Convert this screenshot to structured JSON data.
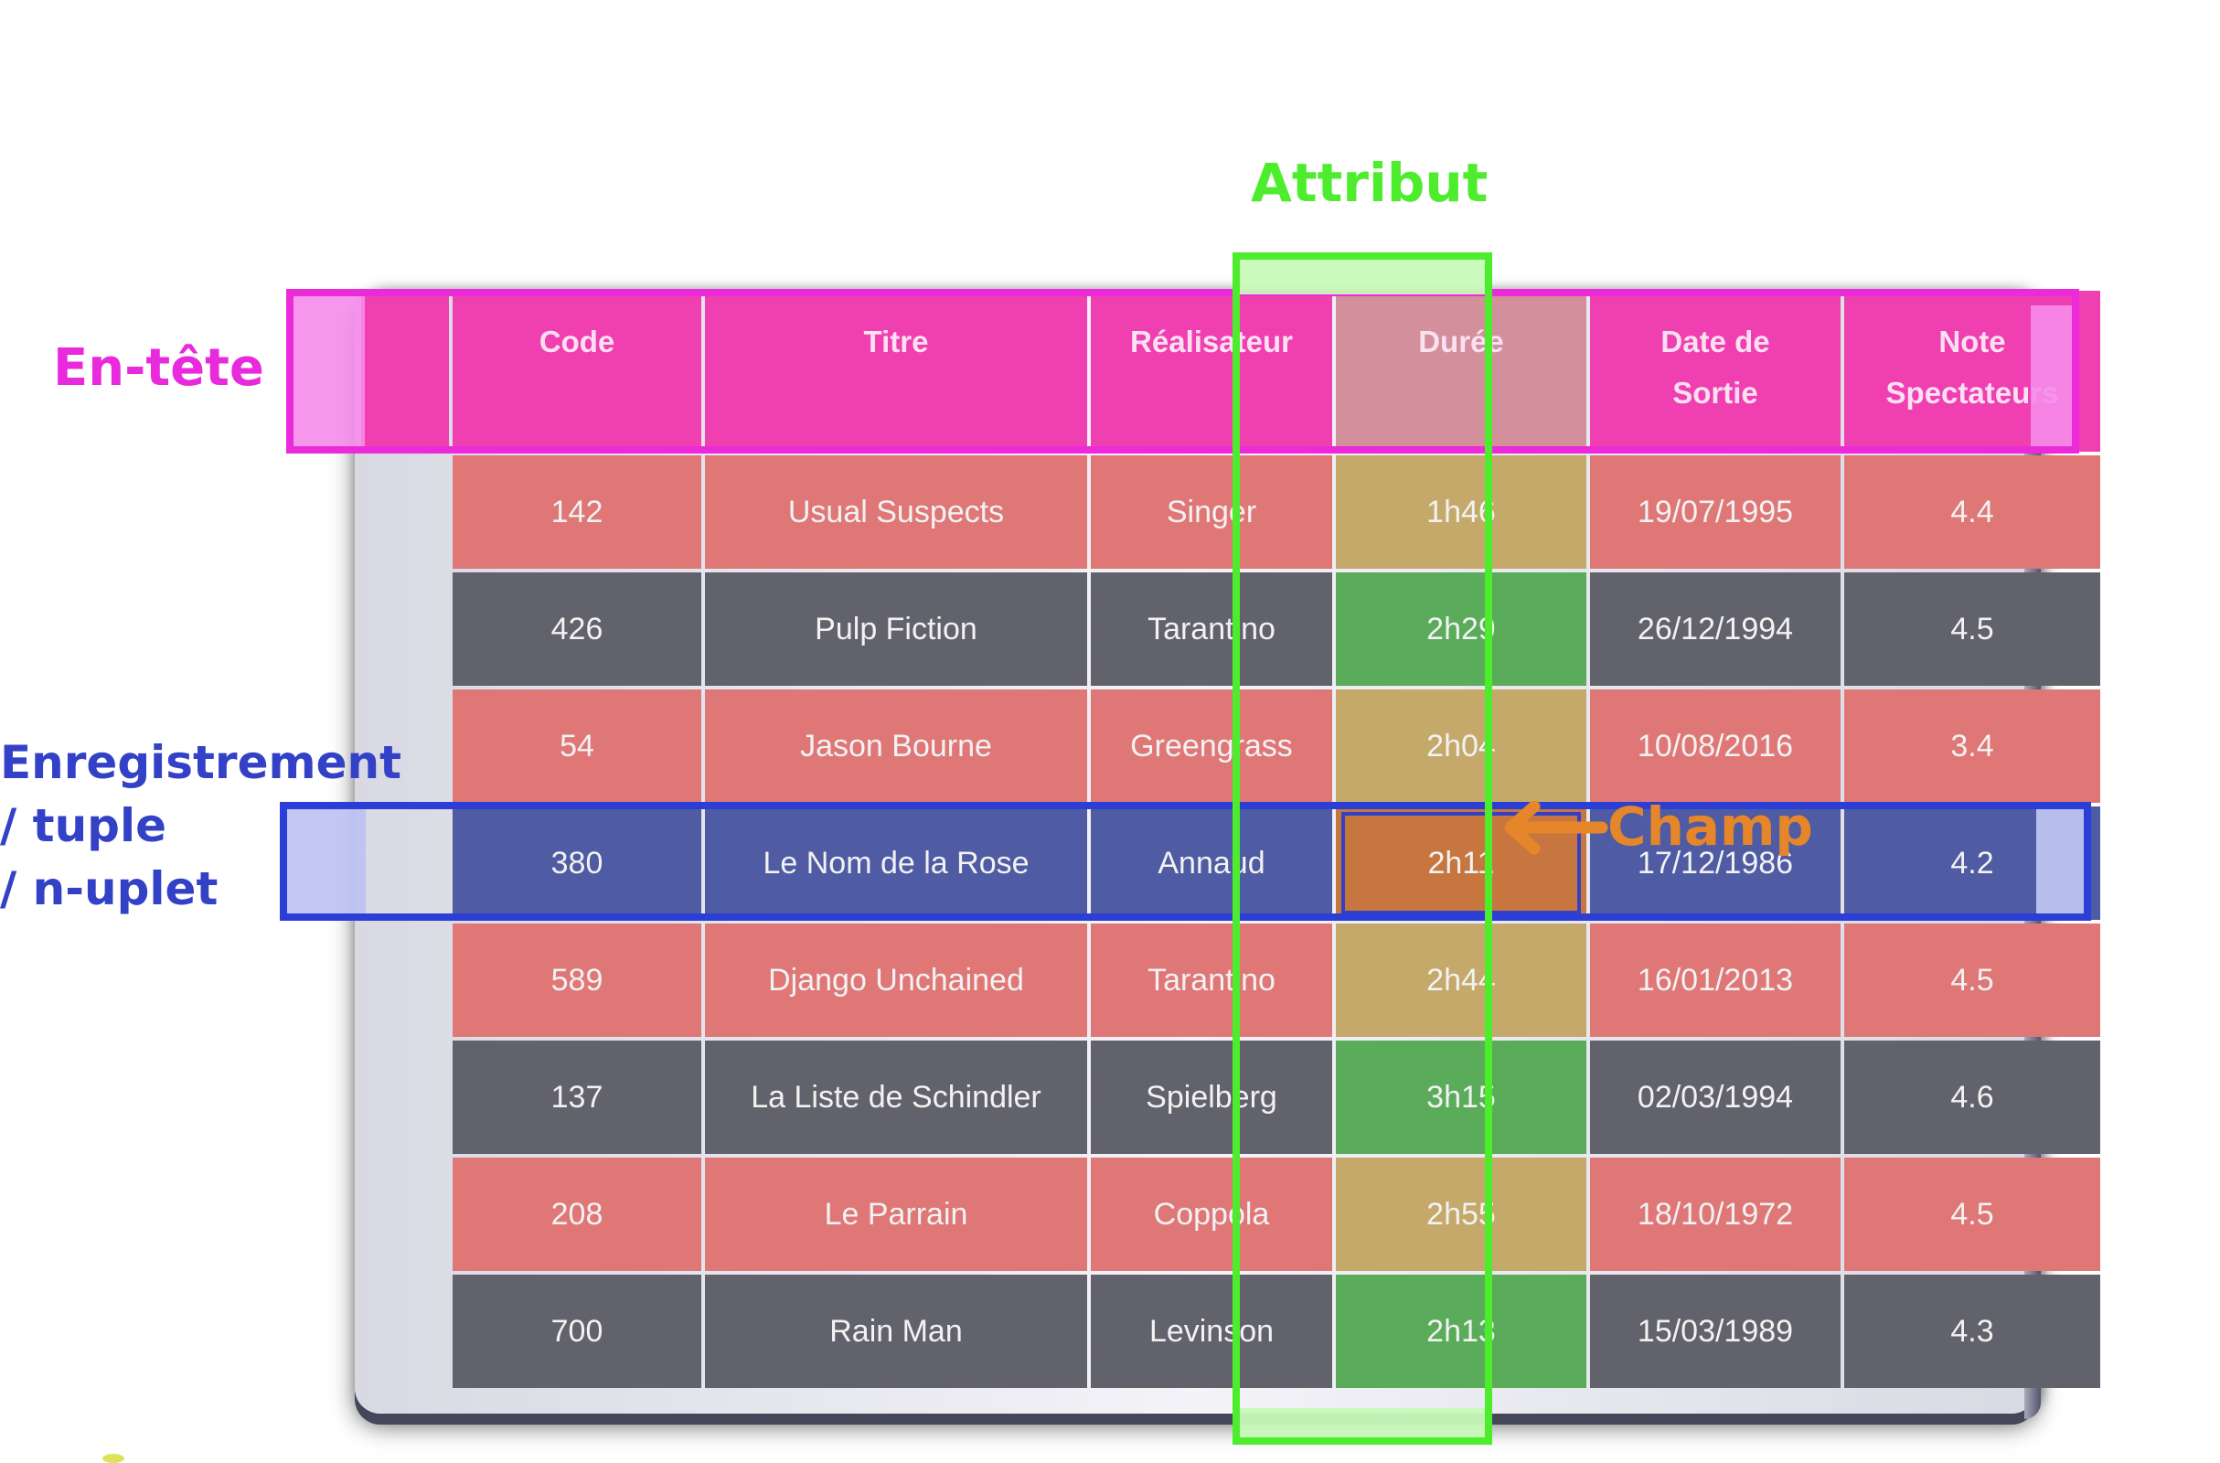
{
  "labels": {
    "attribut": "Attribut",
    "en_tete": "En-tête",
    "enregistrement": [
      "Enregistrement",
      "/ tuple",
      "/ n-uplet"
    ],
    "champ": "Champ"
  },
  "colors": {
    "header_highlight": "#ec2ad9",
    "attribute_highlight": "#4ded2d",
    "record_highlight": "#2b3fd6",
    "field_highlight": "#e5862a"
  },
  "table": {
    "headers": [
      [
        "Code"
      ],
      [
        "Titre"
      ],
      [
        "Réalisateur"
      ],
      [
        "Durée"
      ],
      [
        "Date de",
        "Sortie"
      ],
      [
        "Note",
        "Spectateurs"
      ]
    ],
    "rows": [
      [
        "142",
        "Usual Suspects",
        "Singer",
        "1h46",
        "19/07/1995",
        "4.4"
      ],
      [
        "426",
        "Pulp Fiction",
        "Tarantino",
        "2h29",
        "26/12/1994",
        "4.5"
      ],
      [
        "54",
        "Jason Bourne",
        "Greengrass",
        "2h04",
        "10/08/2016",
        "3.4"
      ],
      [
        "380",
        "Le Nom de la Rose",
        "Annaud",
        "2h11",
        "17/12/1986",
        "4.2"
      ],
      [
        "589",
        "Django Unchained",
        "Tarantino",
        "2h44",
        "16/01/2013",
        "4.5"
      ],
      [
        "137",
        "La Liste de Schindler",
        "Spielberg",
        "3h15",
        "02/03/1994",
        "4.6"
      ],
      [
        "208",
        "Le Parrain",
        "Coppola",
        "2h55",
        "18/10/1972",
        "4.5"
      ],
      [
        "700",
        "Rain Man",
        "Levinson",
        "2h13",
        "15/03/1989",
        "4.3"
      ]
    ],
    "highlighted_row_index": 3,
    "highlighted_column_index": 3
  }
}
